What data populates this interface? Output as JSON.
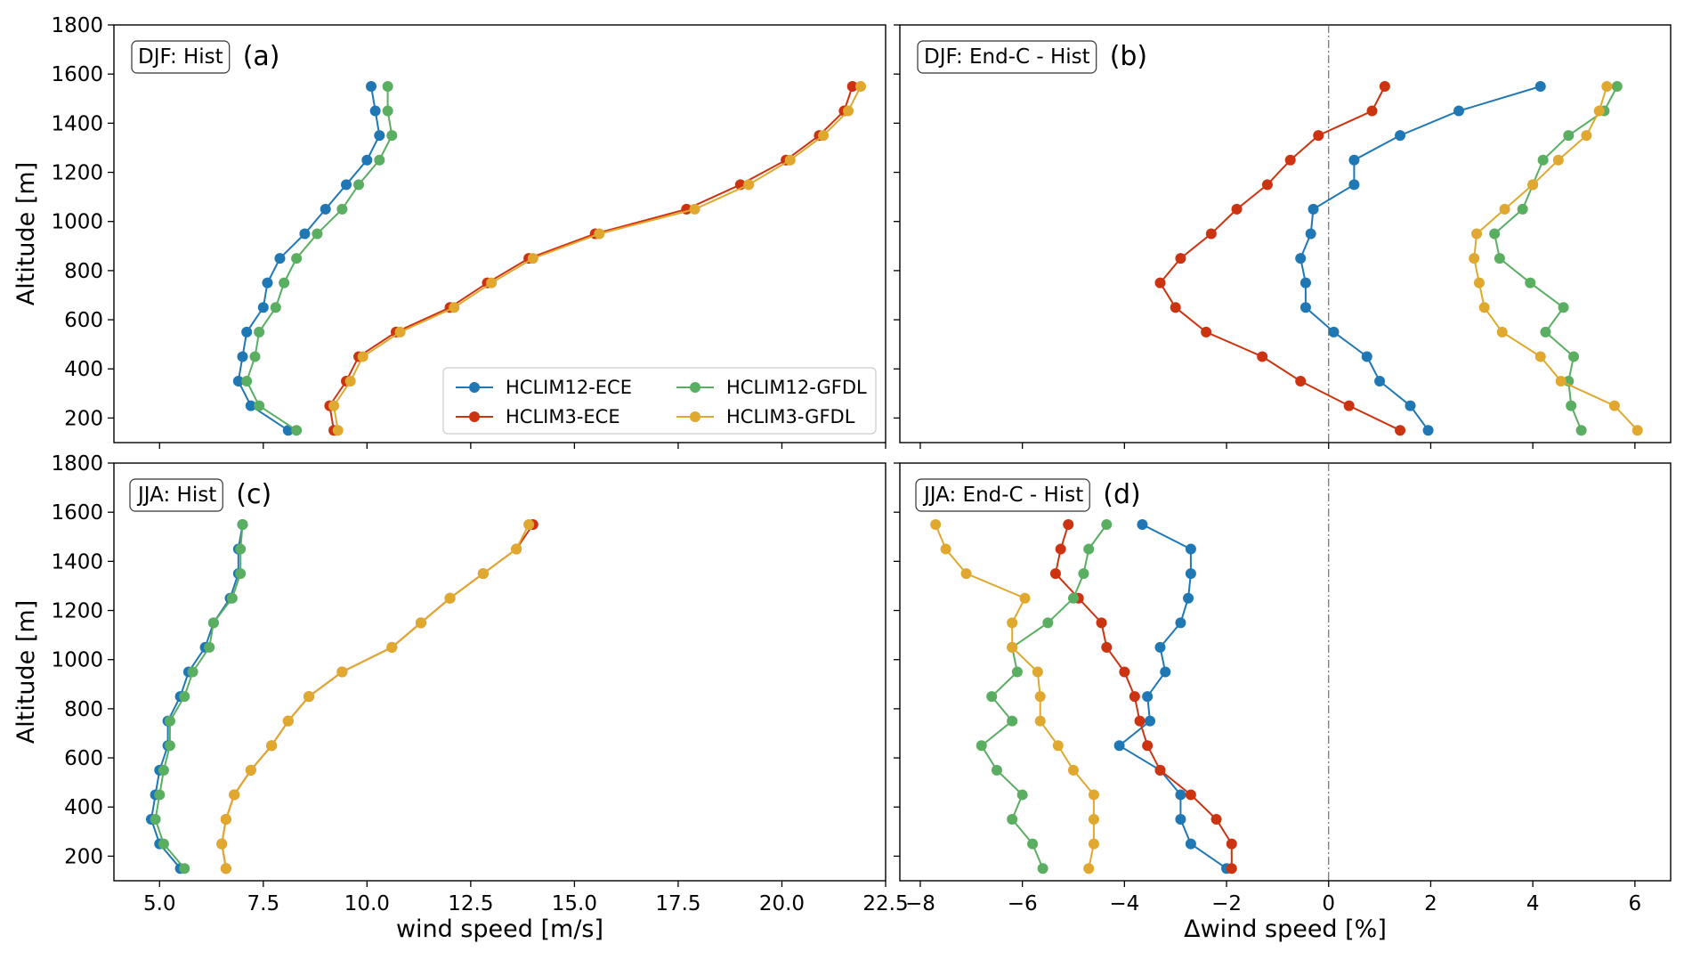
{
  "colors": {
    "HCLIM12-ECE": "#1f77b4",
    "HCLIM3-ECE": "#cc3311",
    "HCLIM12-GFDL": "#5aae61",
    "HCLIM3-GFDL": "#e0a82e"
  },
  "chart_data": [
    {
      "id": "a",
      "type": "line",
      "title": "DJF: Hist",
      "panel_label": "(a)",
      "xlabel": "",
      "ylabel": "Altitude [m]",
      "xlim": [
        3.9,
        22.5
      ],
      "ylim": [
        100,
        1800
      ],
      "xticks": [
        5.0,
        7.5,
        10.0,
        12.5,
        15.0,
        17.5,
        20.0,
        22.5
      ],
      "xtick_labels": [
        "5.0",
        "7.5",
        "10.0",
        "12.5",
        "15.0",
        "17.5",
        "20.0",
        "22.5"
      ],
      "yticks": [
        200,
        400,
        600,
        800,
        1000,
        1200,
        1400,
        1600,
        1800
      ],
      "ytick_labels": [
        "200",
        "400",
        "600",
        "800",
        "1000",
        "1200",
        "1400",
        "1600",
        "1800"
      ],
      "legend": {
        "placement": "lower-right",
        "entries": [
          "HCLIM12-ECE",
          "HCLIM3-ECE",
          "HCLIM12-GFDL",
          "HCLIM3-GFDL"
        ]
      },
      "y": [
        150,
        250,
        350,
        450,
        550,
        650,
        750,
        850,
        950,
        1050,
        1150,
        1250,
        1350,
        1450,
        1550
      ],
      "series": [
        {
          "name": "HCLIM12-ECE",
          "x": [
            8.1,
            7.2,
            6.9,
            7.0,
            7.1,
            7.5,
            7.6,
            7.9,
            8.5,
            9.0,
            9.5,
            10.0,
            10.3,
            10.2,
            10.1
          ]
        },
        {
          "name": "HCLIM3-ECE",
          "x": [
            9.2,
            9.1,
            9.5,
            9.8,
            10.7,
            12.0,
            12.9,
            13.9,
            15.5,
            17.7,
            19.0,
            20.1,
            20.9,
            21.5,
            21.7
          ]
        },
        {
          "name": "HCLIM12-GFDL",
          "x": [
            8.3,
            7.4,
            7.1,
            7.3,
            7.4,
            7.8,
            8.0,
            8.3,
            8.8,
            9.4,
            9.8,
            10.3,
            10.6,
            10.5,
            10.5
          ]
        },
        {
          "name": "HCLIM3-GFDL",
          "x": [
            9.3,
            9.2,
            9.6,
            9.9,
            10.8,
            12.1,
            13.0,
            14.0,
            15.6,
            17.9,
            19.2,
            20.2,
            21.0,
            21.6,
            21.9
          ]
        }
      ]
    },
    {
      "id": "b",
      "type": "line",
      "title": "DJF: End-C - Hist",
      "panel_label": "(b)",
      "xlabel": "",
      "ylabel": "",
      "xlim": [
        -8.4,
        6.7
      ],
      "ylim": [
        100,
        1800
      ],
      "xticks": [
        -8,
        -6,
        -4,
        -2,
        0,
        2,
        4,
        6
      ],
      "xtick_labels": [
        "−8",
        "−6",
        "−4",
        "−2",
        "0",
        "2",
        "4",
        "6"
      ],
      "yticks": [
        200,
        400,
        600,
        800,
        1000,
        1200,
        1400,
        1600,
        1800
      ],
      "vline_x": 0,
      "y": [
        150,
        250,
        350,
        450,
        550,
        650,
        750,
        850,
        950,
        1050,
        1150,
        1250,
        1350,
        1450,
        1550
      ],
      "series": [
        {
          "name": "HCLIM12-ECE",
          "x": [
            1.95,
            1.6,
            1.0,
            0.75,
            0.1,
            -0.45,
            -0.45,
            -0.55,
            -0.35,
            -0.3,
            0.5,
            0.5,
            1.4,
            2.55,
            4.15
          ]
        },
        {
          "name": "HCLIM3-ECE",
          "x": [
            1.4,
            0.4,
            -0.55,
            -1.3,
            -2.4,
            -3.0,
            -3.3,
            -2.9,
            -2.3,
            -1.8,
            -1.2,
            -0.75,
            -0.2,
            0.85,
            1.1
          ]
        },
        {
          "name": "HCLIM12-GFDL",
          "x": [
            4.95,
            4.75,
            4.7,
            4.8,
            4.25,
            4.6,
            3.95,
            3.35,
            3.25,
            3.8,
            4.0,
            4.2,
            4.7,
            5.4,
            5.65
          ]
        },
        {
          "name": "HCLIM3-GFDL",
          "x": [
            6.05,
            5.6,
            4.55,
            4.15,
            3.4,
            3.05,
            2.95,
            2.85,
            2.9,
            3.45,
            4.0,
            4.5,
            5.05,
            5.3,
            5.45
          ]
        }
      ]
    },
    {
      "id": "c",
      "type": "line",
      "title": "JJA: Hist",
      "panel_label": "(c)",
      "xlabel": "wind speed [m/s]",
      "ylabel": "Altitude [m]",
      "xlim": [
        3.9,
        22.5
      ],
      "ylim": [
        100,
        1800
      ],
      "xticks": [
        5.0,
        7.5,
        10.0,
        12.5,
        15.0,
        17.5,
        20.0,
        22.5
      ],
      "xtick_labels": [
        "5.0",
        "7.5",
        "10.0",
        "12.5",
        "15.0",
        "17.5",
        "20.0",
        "22.5"
      ],
      "yticks": [
        200,
        400,
        600,
        800,
        1000,
        1200,
        1400,
        1600,
        1800
      ],
      "ytick_labels": [
        "200",
        "400",
        "600",
        "800",
        "1000",
        "1200",
        "1400",
        "1600",
        "1800"
      ],
      "y": [
        150,
        250,
        350,
        450,
        550,
        650,
        750,
        850,
        950,
        1050,
        1150,
        1250,
        1350,
        1450,
        1550
      ],
      "series": [
        {
          "name": "HCLIM12-ECE",
          "x": [
            5.5,
            5.0,
            4.8,
            4.9,
            5.0,
            5.2,
            5.2,
            5.5,
            5.7,
            6.1,
            6.3,
            6.7,
            6.9,
            6.9,
            7.0
          ]
        },
        {
          "name": "HCLIM3-ECE",
          "x": [
            6.6,
            6.5,
            6.6,
            6.8,
            7.2,
            7.7,
            8.1,
            8.6,
            9.4,
            10.6,
            11.3,
            12.0,
            12.8,
            13.6,
            14.0
          ]
        },
        {
          "name": "HCLIM12-GFDL",
          "x": [
            5.6,
            5.1,
            4.9,
            5.0,
            5.1,
            5.25,
            5.25,
            5.6,
            5.8,
            6.2,
            6.3,
            6.75,
            6.95,
            6.95,
            7.0
          ]
        },
        {
          "name": "HCLIM3-GFDL",
          "x": [
            6.6,
            6.5,
            6.6,
            6.8,
            7.2,
            7.7,
            8.1,
            8.6,
            9.4,
            10.6,
            11.3,
            12.0,
            12.8,
            13.6,
            13.9
          ]
        }
      ]
    },
    {
      "id": "d",
      "type": "line",
      "title": "JJA: End-C - Hist",
      "panel_label": "(d)",
      "xlabel": "Δwind speed [%]",
      "ylabel": "",
      "xlim": [
        -8.4,
        6.7
      ],
      "ylim": [
        100,
        1800
      ],
      "xticks": [
        -8,
        -6,
        -4,
        -2,
        0,
        2,
        4,
        6
      ],
      "xtick_labels": [
        "−8",
        "−6",
        "−4",
        "−2",
        "0",
        "2",
        "4",
        "6"
      ],
      "yticks": [
        200,
        400,
        600,
        800,
        1000,
        1200,
        1400,
        1600,
        1800
      ],
      "vline_x": 0,
      "y": [
        150,
        250,
        350,
        450,
        550,
        650,
        750,
        850,
        950,
        1050,
        1150,
        1250,
        1350,
        1450,
        1550
      ],
      "series": [
        {
          "name": "HCLIM12-ECE",
          "x": [
            -2.0,
            -2.7,
            -2.9,
            -2.9,
            -3.3,
            -4.1,
            -3.5,
            -3.55,
            -3.2,
            -3.3,
            -2.9,
            -2.75,
            -2.7,
            -2.7,
            -3.65
          ]
        },
        {
          "name": "HCLIM3-ECE",
          "x": [
            -1.9,
            -1.9,
            -2.2,
            -2.7,
            -3.3,
            -3.55,
            -3.7,
            -3.8,
            -4.0,
            -4.35,
            -4.45,
            -4.9,
            -5.35,
            -5.25,
            -5.1
          ]
        },
        {
          "name": "HCLIM12-GFDL",
          "x": [
            -5.6,
            -5.8,
            -6.2,
            -6.0,
            -6.5,
            -6.8,
            -6.2,
            -6.6,
            -6.1,
            -6.2,
            -5.5,
            -5.0,
            -4.8,
            -4.7,
            -4.35
          ]
        },
        {
          "name": "HCLIM3-GFDL",
          "x": [
            -4.7,
            -4.6,
            -4.6,
            -4.6,
            -5.0,
            -5.3,
            -5.65,
            -5.65,
            -5.7,
            -6.2,
            -6.2,
            -5.95,
            -7.1,
            -7.5,
            -7.7
          ]
        }
      ]
    }
  ]
}
